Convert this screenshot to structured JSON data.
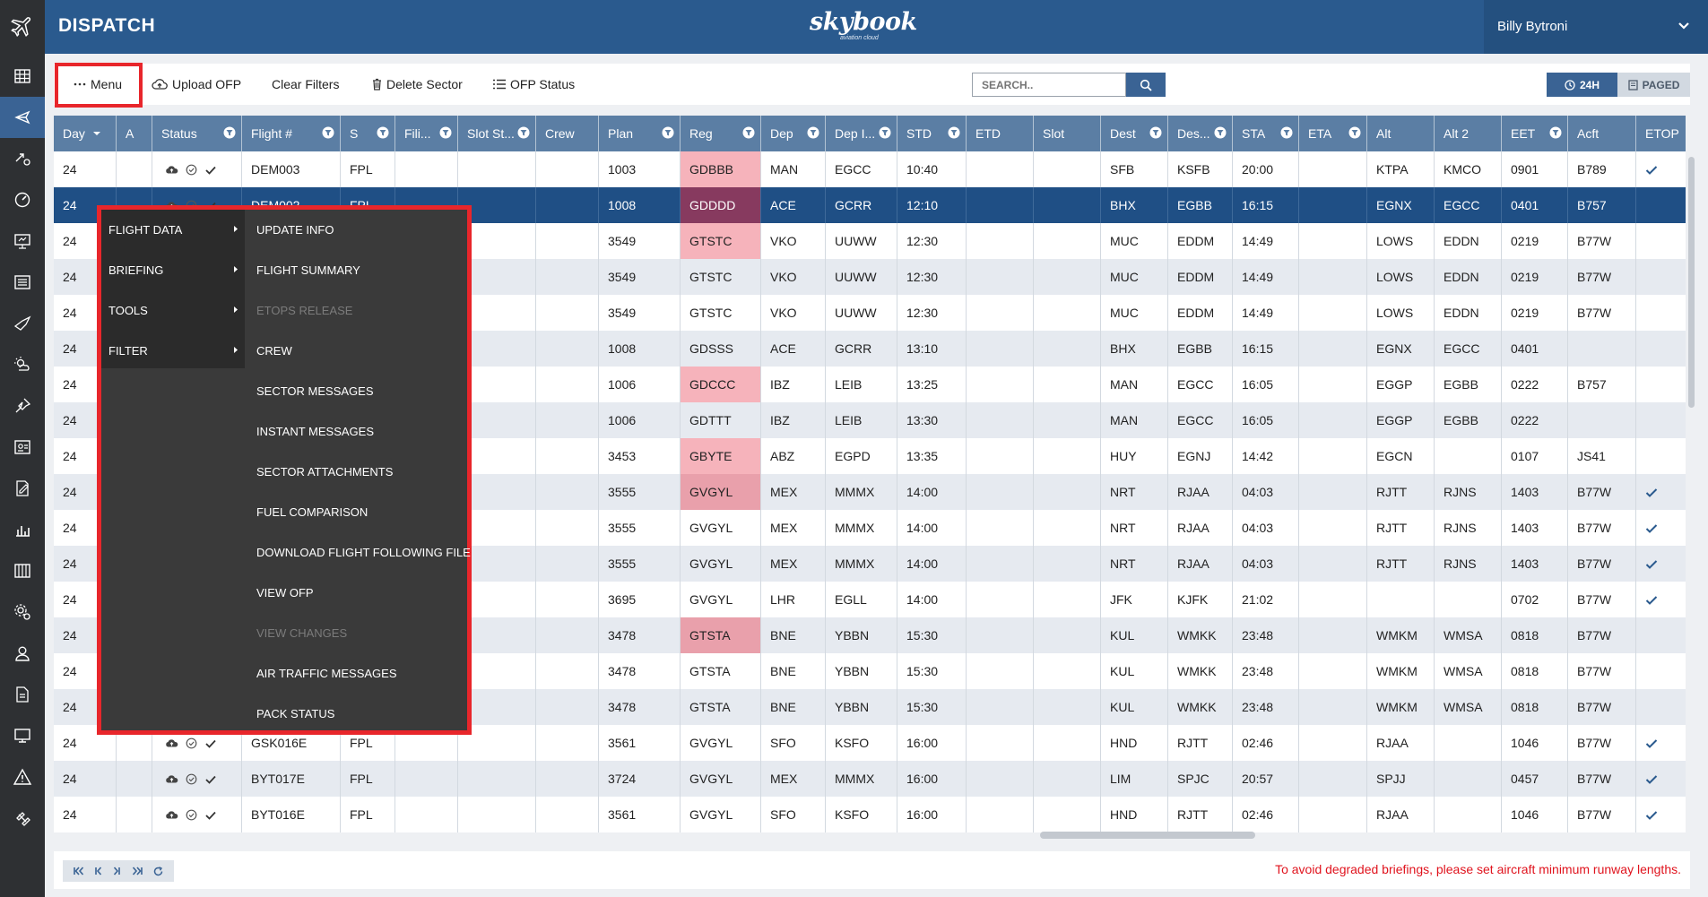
{
  "app": {
    "title": "DISPATCH",
    "brand": "skybook",
    "brand_sub": "aviation cloud",
    "user": "Billy Bytroni"
  },
  "colors": {
    "header_blue": "#2a5a8e",
    "rail_dark": "#2e3033",
    "column_header": "#5b7ea4",
    "selected_row": "#1f4f85",
    "reg_highlight": "#f6b3bb",
    "menu_bg": "#3a3a3a",
    "highlight_red": "#e8262b",
    "warning_red": "#e0131d"
  },
  "rail_icons": [
    "grid-icon",
    "plane-icon",
    "plane-tools-icon",
    "gauge-icon",
    "presentation-icon",
    "list-icon",
    "plane-alt-icon",
    "weather-icon",
    "pin-icon",
    "id-card-icon",
    "edit-doc-icon",
    "bar-chart-icon",
    "library-icon",
    "settings-icon",
    "user-icon",
    "document-icon",
    "monitor-icon",
    "warning-icon",
    "satellite-icon"
  ],
  "toolbar": {
    "menu": "Menu",
    "upload_ofp": "Upload OFP",
    "clear_filters": "Clear Filters",
    "delete_sector": "Delete Sector",
    "ofp_status": "OFP Status",
    "search_placeholder": "SEARCH..",
    "btn_24h": "24H",
    "btn_paged": "PAGED"
  },
  "columns": [
    {
      "key": "day",
      "label": "Day",
      "sort": true
    },
    {
      "key": "a",
      "label": "A"
    },
    {
      "key": "status",
      "label": "Status",
      "filter": true
    },
    {
      "key": "flight",
      "label": "Flight #",
      "filter": true
    },
    {
      "key": "s",
      "label": "S",
      "filter": true
    },
    {
      "key": "fili",
      "label": "Fili...",
      "filter": true
    },
    {
      "key": "slotst",
      "label": "Slot St...",
      "filter": true
    },
    {
      "key": "crew",
      "label": "Crew"
    },
    {
      "key": "plan",
      "label": "Plan",
      "filter": true
    },
    {
      "key": "reg",
      "label": "Reg",
      "filter": true
    },
    {
      "key": "dep",
      "label": "Dep",
      "filter": true
    },
    {
      "key": "depi",
      "label": "Dep I...",
      "filter": true
    },
    {
      "key": "std",
      "label": "STD",
      "filter": true
    },
    {
      "key": "etd",
      "label": "ETD"
    },
    {
      "key": "slot",
      "label": "Slot"
    },
    {
      "key": "dest",
      "label": "Dest",
      "filter": true
    },
    {
      "key": "desi",
      "label": "Des...",
      "filter": true
    },
    {
      "key": "sta",
      "label": "STA",
      "filter": true
    },
    {
      "key": "eta",
      "label": "ETA",
      "filter": true
    },
    {
      "key": "alt",
      "label": "Alt"
    },
    {
      "key": "alt2",
      "label": "Alt 2"
    },
    {
      "key": "eet",
      "label": "EET",
      "filter": true
    },
    {
      "key": "acft",
      "label": "Acft"
    },
    {
      "key": "etop",
      "label": "ETOP"
    }
  ],
  "rows": [
    {
      "day": "24",
      "flight": "DEM003",
      "s": "FPL",
      "plan": "1003",
      "reg": "GDBBB",
      "reg_hi": true,
      "dep": "MAN",
      "depi": "EGCC",
      "std": "10:40",
      "dest": "SFB",
      "desi": "KSFB",
      "sta": "20:00",
      "alt": "KTPA",
      "alt2": "KMCO",
      "eet": "0901",
      "acft": "B789",
      "etop": true
    },
    {
      "day": "24",
      "flight": "DEM002",
      "s": "FPL",
      "plan": "1008",
      "reg": "GDDDD",
      "reg_hi": true,
      "dep": "ACE",
      "depi": "GCRR",
      "std": "12:10",
      "dest": "BHX",
      "desi": "EGBB",
      "sta": "16:15",
      "alt": "EGNX",
      "alt2": "EGCC",
      "eet": "0401",
      "acft": "B757",
      "selected": true
    },
    {
      "day": "24",
      "plan": "3549",
      "reg": "GTSTC",
      "reg_hi": true,
      "dep": "VKO",
      "depi": "UUWW",
      "std": "12:30",
      "dest": "MUC",
      "desi": "EDDM",
      "sta": "14:49",
      "alt": "LOWS",
      "alt2": "EDDN",
      "eet": "0219",
      "acft": "B77W"
    },
    {
      "day": "24",
      "plan": "3549",
      "reg": "GTSTC",
      "dep": "VKO",
      "depi": "UUWW",
      "std": "12:30",
      "dest": "MUC",
      "desi": "EDDM",
      "sta": "14:49",
      "alt": "LOWS",
      "alt2": "EDDN",
      "eet": "0219",
      "acft": "B77W"
    },
    {
      "day": "24",
      "plan": "3549",
      "reg": "GTSTC",
      "dep": "VKO",
      "depi": "UUWW",
      "std": "12:30",
      "dest": "MUC",
      "desi": "EDDM",
      "sta": "14:49",
      "alt": "LOWS",
      "alt2": "EDDN",
      "eet": "0219",
      "acft": "B77W"
    },
    {
      "day": "24",
      "plan": "1008",
      "reg": "GDSSS",
      "dep": "ACE",
      "depi": "GCRR",
      "std": "13:10",
      "dest": "BHX",
      "desi": "EGBB",
      "sta": "16:15",
      "alt": "EGNX",
      "alt2": "EGCC",
      "eet": "0401",
      "acft": ""
    },
    {
      "day": "24",
      "plan": "1006",
      "reg": "GDCCC",
      "reg_hi": true,
      "dep": "IBZ",
      "depi": "LEIB",
      "std": "13:25",
      "dest": "MAN",
      "desi": "EGCC",
      "sta": "16:05",
      "alt": "EGGP",
      "alt2": "EGBB",
      "eet": "0222",
      "acft": "B757"
    },
    {
      "day": "24",
      "plan": "1006",
      "reg": "GDTTT",
      "dep": "IBZ",
      "depi": "LEIB",
      "std": "13:30",
      "dest": "MAN",
      "desi": "EGCC",
      "sta": "16:05",
      "alt": "EGGP",
      "alt2": "EGBB",
      "eet": "0222",
      "acft": ""
    },
    {
      "day": "24",
      "plan": "3453",
      "reg": "GBYTE",
      "reg_hi": true,
      "dep": "ABZ",
      "depi": "EGPD",
      "std": "13:35",
      "dest": "HUY",
      "desi": "EGNJ",
      "sta": "14:42",
      "alt": "EGCN",
      "alt2": "",
      "eet": "0107",
      "acft": "JS41"
    },
    {
      "day": "24",
      "plan": "3555",
      "reg": "GVGYL",
      "reg_hi": true,
      "dep": "MEX",
      "depi": "MMMX",
      "std": "14:00",
      "dest": "NRT",
      "desi": "RJAA",
      "sta": "04:03",
      "alt": "RJTT",
      "alt2": "RJNS",
      "eet": "1403",
      "acft": "B77W",
      "etop": true
    },
    {
      "day": "24",
      "plan": "3555",
      "reg": "GVGYL",
      "dep": "MEX",
      "depi": "MMMX",
      "std": "14:00",
      "dest": "NRT",
      "desi": "RJAA",
      "sta": "04:03",
      "alt": "RJTT",
      "alt2": "RJNS",
      "eet": "1403",
      "acft": "B77W",
      "etop": true
    },
    {
      "day": "24",
      "plan": "3555",
      "reg": "GVGYL",
      "dep": "MEX",
      "depi": "MMMX",
      "std": "14:00",
      "dest": "NRT",
      "desi": "RJAA",
      "sta": "04:03",
      "alt": "RJTT",
      "alt2": "RJNS",
      "eet": "1403",
      "acft": "B77W",
      "etop": true
    },
    {
      "day": "24",
      "plan": "3695",
      "reg": "GVGYL",
      "dep": "LHR",
      "depi": "EGLL",
      "std": "14:00",
      "dest": "JFK",
      "desi": "KJFK",
      "sta": "21:02",
      "alt": "",
      "alt2": "",
      "eet": "0702",
      "acft": "B77W",
      "etop": true
    },
    {
      "day": "24",
      "plan": "3478",
      "reg": "GTSTA",
      "reg_hi": true,
      "dep": "BNE",
      "depi": "YBBN",
      "std": "15:30",
      "dest": "KUL",
      "desi": "WMKK",
      "sta": "23:48",
      "alt": "WMKM",
      "alt2": "WMSA",
      "eet": "0818",
      "acft": "B77W"
    },
    {
      "day": "24",
      "plan": "3478",
      "reg": "GTSTA",
      "dep": "BNE",
      "depi": "YBBN",
      "std": "15:30",
      "dest": "KUL",
      "desi": "WMKK",
      "sta": "23:48",
      "alt": "WMKM",
      "alt2": "WMSA",
      "eet": "0818",
      "acft": "B77W"
    },
    {
      "day": "24",
      "plan": "3478",
      "reg": "GTSTA",
      "dep": "BNE",
      "depi": "YBBN",
      "std": "15:30",
      "dest": "KUL",
      "desi": "WMKK",
      "sta": "23:48",
      "alt": "WMKM",
      "alt2": "WMSA",
      "eet": "0818",
      "acft": "B77W"
    },
    {
      "day": "24",
      "flight": "GSK016E",
      "s": "FPL",
      "plan": "3561",
      "reg": "GVGYL",
      "dep": "SFO",
      "depi": "KSFO",
      "std": "16:00",
      "dest": "HND",
      "desi": "RJTT",
      "sta": "02:46",
      "alt": "RJAA",
      "alt2": "",
      "eet": "1046",
      "acft": "B77W",
      "etop": true
    },
    {
      "day": "24",
      "flight": "BYT017E",
      "s": "FPL",
      "plan": "3724",
      "reg": "GVGYL",
      "dep": "MEX",
      "depi": "MMMX",
      "std": "16:00",
      "dest": "LIM",
      "desi": "SPJC",
      "sta": "20:57",
      "alt": "SPJJ",
      "alt2": "",
      "eet": "0457",
      "acft": "B77W",
      "etop": true
    },
    {
      "day": "24",
      "flight": "BYT016E",
      "s": "FPL",
      "plan": "3561",
      "reg": "GVGYL",
      "dep": "SFO",
      "depi": "KSFO",
      "std": "16:00",
      "dest": "HND",
      "desi": "RJTT",
      "sta": "02:46",
      "alt": "RJAA",
      "alt2": "",
      "eet": "1046",
      "acft": "B77W",
      "etop": true
    }
  ],
  "context_menu": {
    "categories": [
      "FLIGHT DATA",
      "BRIEFING",
      "TOOLS",
      "FILTER"
    ],
    "items": [
      {
        "label": "UPDATE INFO"
      },
      {
        "label": "FLIGHT SUMMARY"
      },
      {
        "label": "ETOPS RELEASE",
        "disabled": true
      },
      {
        "label": "CREW"
      },
      {
        "label": "SECTOR MESSAGES"
      },
      {
        "label": "INSTANT MESSAGES"
      },
      {
        "label": "SECTOR ATTACHMENTS"
      },
      {
        "label": "FUEL COMPARISON"
      },
      {
        "label": "DOWNLOAD FLIGHT FOLLOWING FILE"
      },
      {
        "label": "VIEW OFP"
      },
      {
        "label": "VIEW CHANGES",
        "disabled": true
      },
      {
        "label": "AIR TRAFFIC MESSAGES"
      },
      {
        "label": "PACK STATUS"
      }
    ]
  },
  "footer": {
    "pager_icons": [
      "first-page-icon",
      "prev-page-icon",
      "next-page-icon",
      "last-page-icon",
      "refresh-icon"
    ],
    "warning": "To avoid degraded briefings, please set aircraft minimum runway lengths."
  }
}
